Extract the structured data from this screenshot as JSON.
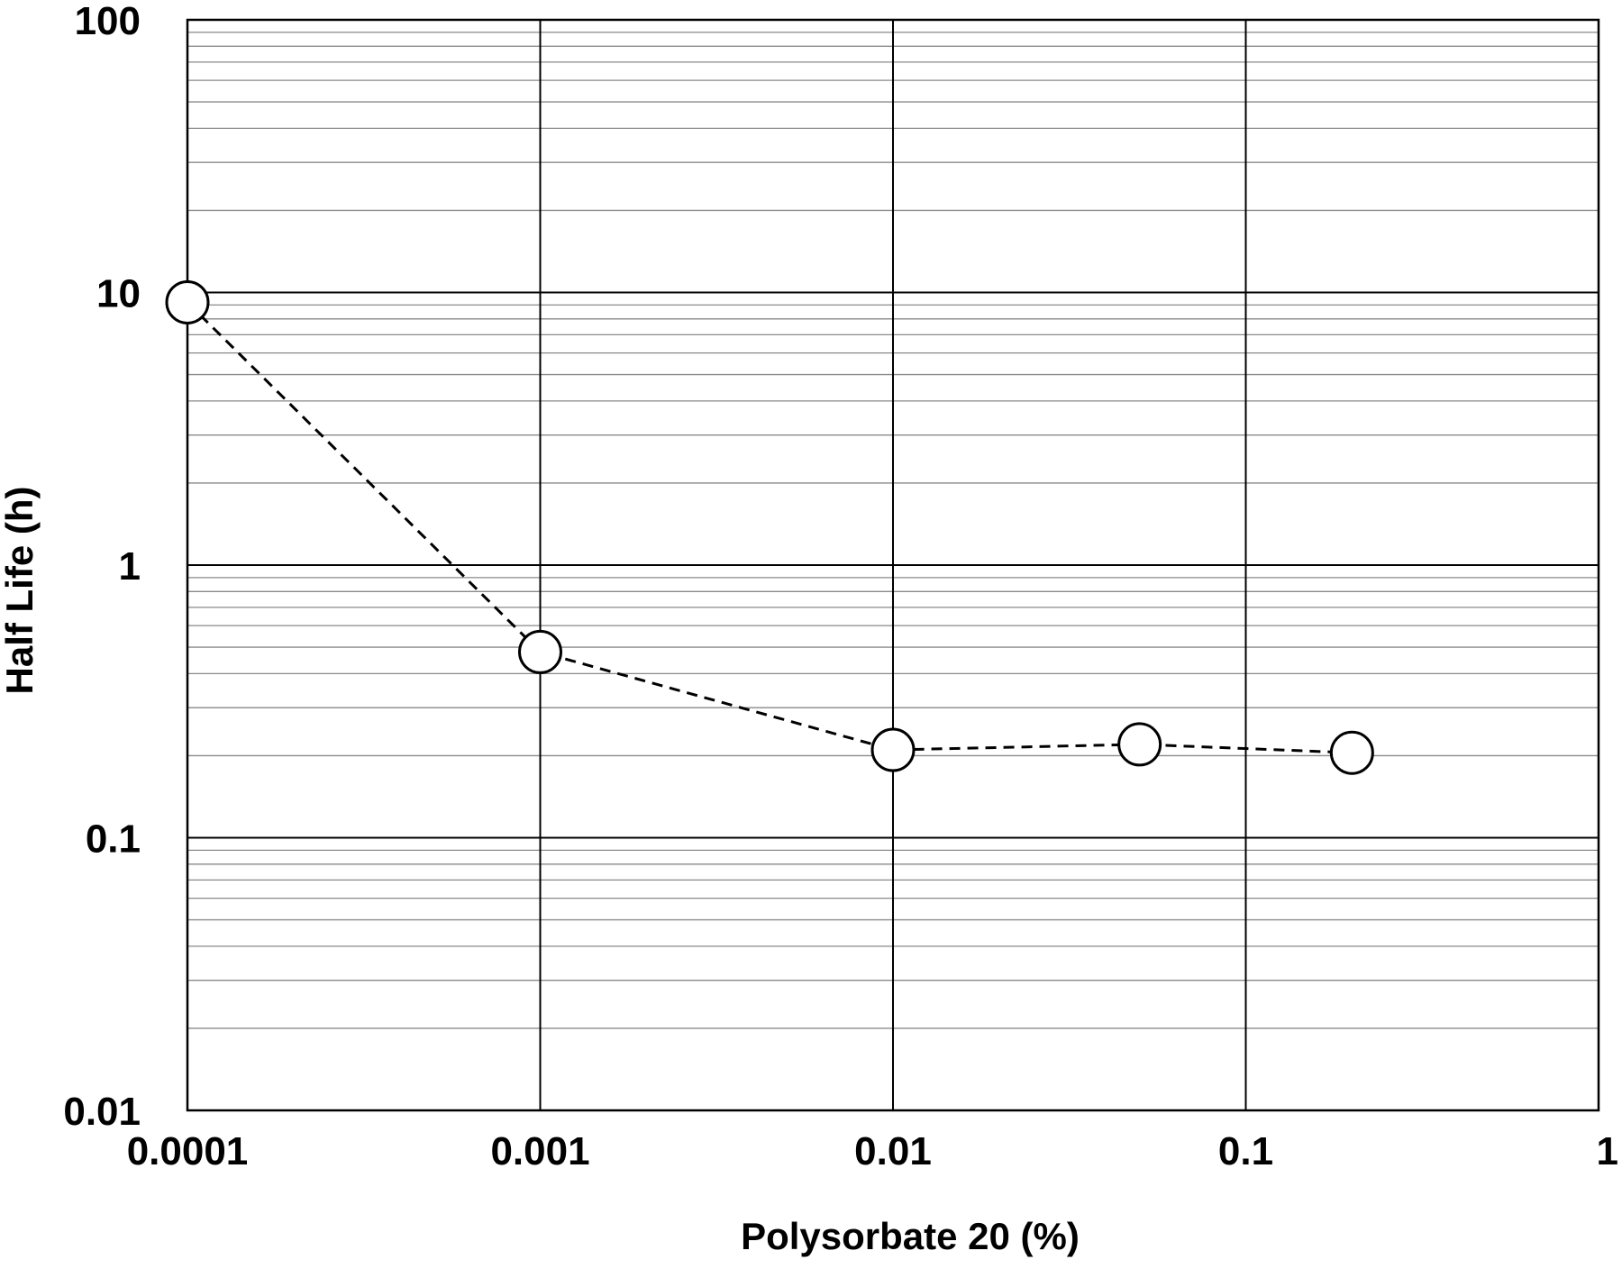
{
  "chart_data": {
    "type": "scatter",
    "xlabel": "Polysorbate 20 (%)",
    "ylabel": "Half Life (h)",
    "xscale": "log",
    "yscale": "log",
    "xlim": [
      0.0001,
      1
    ],
    "ylim": [
      0.01,
      100
    ],
    "x_ticks": [
      "0.0001",
      "0.001",
      "0.01",
      "0.1",
      "1"
    ],
    "y_ticks": [
      "100",
      "10",
      "1",
      "0.1",
      "0.01"
    ],
    "grid": true,
    "marker": "open-circle",
    "line_style": "dashed",
    "series": [
      {
        "x": [
          0.0001,
          0.001,
          0.01,
          0.05,
          0.2
        ],
        "y": [
          9.2,
          0.48,
          0.21,
          0.22,
          0.205
        ]
      }
    ],
    "colors": {
      "line": "#000000",
      "marker_fill": "#ffffff",
      "grid_major": "#000000",
      "grid_minor": "#8a8a8a"
    }
  }
}
